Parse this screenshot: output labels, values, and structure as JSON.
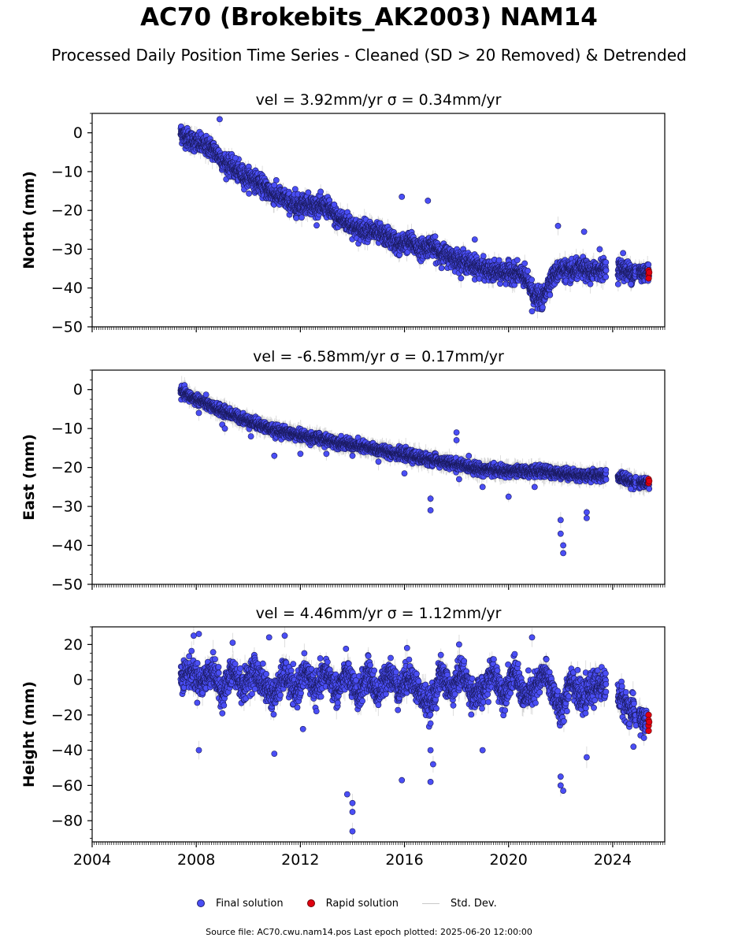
{
  "figure": {
    "title": "AC70 (Brokebits_AK2003) NAM14",
    "subtitle": "Processed Daily Position Time Series - Cleaned (SD > 20 Removed) & Detrended",
    "source_note": "Source file: AC70.cwu.nam14.pos  Last epoch plotted: 2025-06-20 12:00:00"
  },
  "legend": {
    "items": [
      {
        "label": "Final solution",
        "symbol": "dot",
        "color": "#4a4ef5"
      },
      {
        "label": "Rapid solution",
        "symbol": "dot",
        "color": "#e00010"
      },
      {
        "label": "Std. Dev.",
        "symbol": "line",
        "color": "#c8c8c8"
      }
    ]
  },
  "colors": {
    "final": "#4a4ef5",
    "final_edge": "#1a1a5e",
    "rapid": "#e00010",
    "std_dev": "#a0a0a0"
  },
  "chart_data": [
    {
      "type": "scatter",
      "title": "vel = 3.92mm/yr   σ = 0.34mm/yr",
      "ylabel": "North (mm)",
      "xlim": [
        2004.0,
        2026.0
      ],
      "ylim": [
        -50,
        5
      ],
      "yticks": [
        0,
        -10,
        -20,
        -30,
        -40,
        -50
      ],
      "xticks": [
        2004,
        2008,
        2012,
        2016,
        2020,
        2024
      ],
      "show_xticklabels": false,
      "final_trend": [
        [
          2007.4,
          0
        ],
        [
          2007.8,
          -2
        ],
        [
          2008.2,
          -3
        ],
        [
          2008.6,
          -4
        ],
        [
          2009.0,
          -7
        ],
        [
          2009.4,
          -9
        ],
        [
          2009.8,
          -11
        ],
        [
          2010.2,
          -12
        ],
        [
          2010.6,
          -14
        ],
        [
          2011.0,
          -16
        ],
        [
          2011.4,
          -17
        ],
        [
          2011.8,
          -19
        ],
        [
          2012.2,
          -18
        ],
        [
          2012.6,
          -19
        ],
        [
          2013.0,
          -19
        ],
        [
          2013.4,
          -22
        ],
        [
          2013.8,
          -23
        ],
        [
          2014.2,
          -25
        ],
        [
          2014.6,
          -25
        ],
        [
          2015.0,
          -26
        ],
        [
          2015.4,
          -27
        ],
        [
          2015.8,
          -29
        ],
        [
          2016.2,
          -28
        ],
        [
          2016.6,
          -30
        ],
        [
          2017.0,
          -29
        ],
        [
          2017.4,
          -31
        ],
        [
          2017.8,
          -32
        ],
        [
          2018.2,
          -33
        ],
        [
          2018.6,
          -34
        ],
        [
          2019.0,
          -35
        ],
        [
          2019.4,
          -36
        ],
        [
          2019.8,
          -36
        ],
        [
          2020.2,
          -36
        ],
        [
          2020.6,
          -37
        ],
        [
          2021.0,
          -42
        ],
        [
          2021.3,
          -43
        ],
        [
          2021.6,
          -38
        ],
        [
          2022.0,
          -35
        ],
        [
          2022.4,
          -36
        ],
        [
          2022.8,
          -35
        ],
        [
          2023.2,
          -36
        ],
        [
          2023.6,
          -35
        ],
        [
          2024.3,
          -35
        ],
        [
          2024.7,
          -36
        ],
        [
          2025.1,
          -36
        ],
        [
          2025.4,
          -36
        ]
      ],
      "final_scatter": 2.2,
      "final_outliers": [
        [
          2008.9,
          3.5
        ],
        [
          2009.5,
          -6.5
        ],
        [
          2011.0,
          -13.5
        ],
        [
          2011.8,
          -14.5
        ],
        [
          2013.3,
          -18.5
        ],
        [
          2015.9,
          -16.5
        ],
        [
          2016.9,
          -17.5
        ],
        [
          2018.7,
          -27.5
        ],
        [
          2021.9,
          -24
        ],
        [
          2022.9,
          -25.5
        ],
        [
          2023.5,
          -30
        ],
        [
          2020.9,
          -46
        ],
        [
          2024.7,
          -39
        ],
        [
          2024.4,
          -31
        ]
      ],
      "rapid": [
        [
          2025.38,
          -35.5
        ],
        [
          2025.38,
          -36.5
        ],
        [
          2025.38,
          -37.5
        ],
        [
          2025.4,
          -36
        ]
      ],
      "gaps": [
        [
          2023.75,
          2024.2
        ],
        [
          2024.9,
          2025.0
        ]
      ]
    },
    {
      "type": "scatter",
      "title": "vel = -6.58mm/yr   σ = 0.17mm/yr",
      "ylabel": "East (mm)",
      "xlim": [
        2004.0,
        2026.0
      ],
      "ylim": [
        -50,
        5
      ],
      "yticks": [
        0,
        -10,
        -20,
        -30,
        -40,
        -50
      ],
      "xticks": [
        2004,
        2008,
        2012,
        2016,
        2020,
        2024
      ],
      "show_xticklabels": false,
      "final_trend": [
        [
          2007.4,
          -0.5
        ],
        [
          2007.8,
          -2
        ],
        [
          2008.2,
          -3
        ],
        [
          2008.6,
          -4.5
        ],
        [
          2009.0,
          -5.5
        ],
        [
          2009.4,
          -6.5
        ],
        [
          2009.8,
          -7.5
        ],
        [
          2010.2,
          -8.5
        ],
        [
          2010.6,
          -9.5
        ],
        [
          2011.0,
          -10.5
        ],
        [
          2011.4,
          -11
        ],
        [
          2011.8,
          -11.5
        ],
        [
          2012.2,
          -12
        ],
        [
          2012.6,
          -12.5
        ],
        [
          2013.0,
          -13
        ],
        [
          2013.4,
          -13.5
        ],
        [
          2013.8,
          -14
        ],
        [
          2014.2,
          -14.5
        ],
        [
          2014.6,
          -15
        ],
        [
          2015.0,
          -15.5
        ],
        [
          2015.4,
          -16
        ],
        [
          2015.8,
          -16.5
        ],
        [
          2016.2,
          -17
        ],
        [
          2016.6,
          -17.5
        ],
        [
          2017.0,
          -18
        ],
        [
          2017.4,
          -18.5
        ],
        [
          2017.8,
          -19
        ],
        [
          2018.2,
          -19.5
        ],
        [
          2018.6,
          -20
        ],
        [
          2019.0,
          -20.5
        ],
        [
          2019.4,
          -20.5
        ],
        [
          2019.8,
          -21
        ],
        [
          2020.2,
          -21
        ],
        [
          2020.6,
          -21
        ],
        [
          2021.0,
          -21
        ],
        [
          2021.4,
          -21
        ],
        [
          2021.8,
          -21.5
        ],
        [
          2022.2,
          -21.5
        ],
        [
          2022.6,
          -22
        ],
        [
          2023.0,
          -22
        ],
        [
          2023.4,
          -22
        ],
        [
          2023.7,
          -22
        ],
        [
          2024.3,
          -22.5
        ],
        [
          2024.7,
          -23.5
        ],
        [
          2025.1,
          -24
        ],
        [
          2025.4,
          -24
        ]
      ],
      "final_scatter": 1.2,
      "final_outliers": [
        [
          2008.1,
          -6
        ],
        [
          2009.0,
          -9
        ],
        [
          2009.1,
          -10
        ],
        [
          2010.1,
          -12
        ],
        [
          2011.0,
          -17
        ],
        [
          2012.0,
          -16.5
        ],
        [
          2013.0,
          -16.5
        ],
        [
          2014.0,
          -17
        ],
        [
          2015.0,
          -18.5
        ],
        [
          2016.0,
          -21.5
        ],
        [
          2017.0,
          -28
        ],
        [
          2017.0,
          -31
        ],
        [
          2018.1,
          -23
        ],
        [
          2018.0,
          -11
        ],
        [
          2018.0,
          -13
        ],
        [
          2019.0,
          -25
        ],
        [
          2020.0,
          -27.5
        ],
        [
          2021.0,
          -25
        ],
        [
          2022.0,
          -33.5
        ],
        [
          2022.0,
          -37
        ],
        [
          2022.1,
          -40
        ],
        [
          2022.1,
          -42
        ],
        [
          2023.0,
          -31.5
        ],
        [
          2023.0,
          -33
        ],
        [
          2024.7,
          -25.5
        ],
        [
          2025.4,
          -25.5
        ]
      ],
      "rapid": [
        [
          2025.38,
          -23
        ],
        [
          2025.38,
          -24
        ],
        [
          2025.4,
          -23.5
        ]
      ],
      "gaps": [
        [
          2023.75,
          2024.2
        ],
        [
          2024.9,
          2025.0
        ]
      ]
    },
    {
      "type": "scatter",
      "title": "vel = 4.46mm/yr   σ = 1.12mm/yr",
      "ylabel": "Height (mm)",
      "xlim": [
        2004.0,
        2026.0
      ],
      "ylim": [
        -92,
        30
      ],
      "yticks": [
        20,
        0,
        -20,
        -40,
        -60,
        -80
      ],
      "xticks": [
        2004,
        2008,
        2012,
        2016,
        2020,
        2024
      ],
      "xticklabels": [
        "2004",
        "2008",
        "2012",
        "2016",
        "2020",
        "2024"
      ],
      "show_xticklabels": true,
      "final_trend": [
        [
          2007.4,
          2
        ],
        [
          2007.8,
          5
        ],
        [
          2008.2,
          -2
        ],
        [
          2008.6,
          6
        ],
        [
          2009.0,
          -8
        ],
        [
          2009.4,
          5
        ],
        [
          2009.8,
          -5
        ],
        [
          2010.2,
          6
        ],
        [
          2010.6,
          -3
        ],
        [
          2011.0,
          -10
        ],
        [
          2011.4,
          4
        ],
        [
          2011.8,
          -8
        ],
        [
          2012.2,
          5
        ],
        [
          2012.6,
          -6
        ],
        [
          2013.0,
          5
        ],
        [
          2013.4,
          -7
        ],
        [
          2013.8,
          4
        ],
        [
          2014.2,
          -10
        ],
        [
          2014.6,
          4
        ],
        [
          2015.0,
          -9
        ],
        [
          2015.4,
          5
        ],
        [
          2015.8,
          -6
        ],
        [
          2016.2,
          3
        ],
        [
          2016.6,
          -8
        ],
        [
          2017.0,
          -15
        ],
        [
          2017.4,
          4
        ],
        [
          2017.8,
          -7
        ],
        [
          2018.2,
          5
        ],
        [
          2018.6,
          -8
        ],
        [
          2019.0,
          -8
        ],
        [
          2019.4,
          5
        ],
        [
          2019.8,
          -9
        ],
        [
          2020.2,
          5
        ],
        [
          2020.6,
          -10
        ],
        [
          2021.0,
          -6
        ],
        [
          2021.4,
          4
        ],
        [
          2021.8,
          -10
        ],
        [
          2022.0,
          -20
        ],
        [
          2022.4,
          2
        ],
        [
          2022.8,
          -12
        ],
        [
          2023.2,
          -5
        ],
        [
          2023.6,
          -2
        ],
        [
          2024.3,
          -10
        ],
        [
          2024.7,
          -18
        ],
        [
          2025.1,
          -22
        ],
        [
          2025.3,
          -25
        ]
      ],
      "final_scatter": 7.5,
      "final_outliers": [
        [
          2007.9,
          25
        ],
        [
          2008.1,
          26
        ],
        [
          2009.4,
          21
        ],
        [
          2010.8,
          24
        ],
        [
          2011.4,
          25
        ],
        [
          2013.8,
          -65
        ],
        [
          2014.0,
          -70
        ],
        [
          2014.0,
          -75
        ],
        [
          2014.0,
          -86
        ],
        [
          2015.9,
          -57
        ],
        [
          2016.1,
          18
        ],
        [
          2017.0,
          -40
        ],
        [
          2017.1,
          -48
        ],
        [
          2017.0,
          -58
        ],
        [
          2018.1,
          20
        ],
        [
          2019.0,
          -40
        ],
        [
          2020.9,
          24
        ],
        [
          2022.0,
          -55
        ],
        [
          2022.0,
          -60
        ],
        [
          2022.1,
          -63
        ],
        [
          2023.0,
          -44
        ],
        [
          2011.0,
          -42
        ],
        [
          2008.1,
          -40
        ],
        [
          2024.8,
          -38
        ],
        [
          2025.2,
          -33
        ],
        [
          2012.1,
          -28
        ]
      ],
      "rapid": [
        [
          2025.38,
          -20
        ],
        [
          2025.38,
          -23
        ],
        [
          2025.38,
          -26
        ],
        [
          2025.38,
          -29
        ],
        [
          2025.4,
          -24
        ]
      ],
      "gaps": [
        [
          2023.75,
          2024.2
        ],
        [
          2024.9,
          2025.0
        ]
      ]
    }
  ]
}
